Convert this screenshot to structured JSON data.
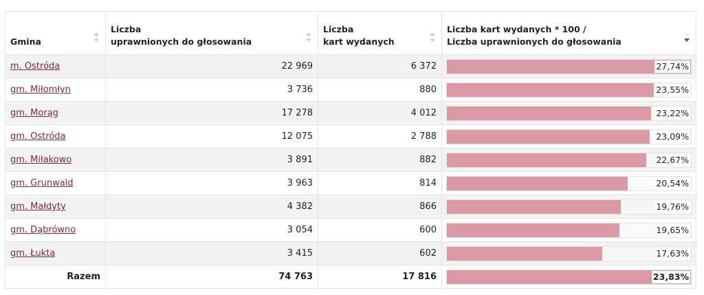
{
  "headers": {
    "gmina": "Gmina",
    "uprawnieni_l1": "Liczba",
    "uprawnieni_l2": "uprawnionych do głosowania",
    "karty_l1": "Liczba",
    "karty_l2": "kart wydanych",
    "frekwencja_l1": "Liczba kart wydanych * 100 /",
    "frekwencja_l2": "Liczba uprawnionych do głosowania"
  },
  "rows": [
    {
      "gmina": "m. Ostróda",
      "uprawnieni": "22 969",
      "karty": "6 372",
      "frekwencja": "27,74%",
      "bar_fraction": 1.0
    },
    {
      "gmina": "gm. Miłomłyn",
      "uprawnieni": "3 736",
      "karty": "880",
      "frekwencja": "23,55%",
      "bar_fraction": 0.849
    },
    {
      "gmina": "gm. Morąg",
      "uprawnieni": "17 278",
      "karty": "4 012",
      "frekwencja": "23,22%",
      "bar_fraction": 0.837
    },
    {
      "gmina": "gm. Ostróda",
      "uprawnieni": "12 075",
      "karty": "2 788",
      "frekwencja": "23,09%",
      "bar_fraction": 0.832
    },
    {
      "gmina": "gm. Miłakowo",
      "uprawnieni": "3 891",
      "karty": "882",
      "frekwencja": "22,67%",
      "bar_fraction": 0.817
    },
    {
      "gmina": "gm. Grunwald",
      "uprawnieni": "3 963",
      "karty": "814",
      "frekwencja": "20,54%",
      "bar_fraction": 0.74
    },
    {
      "gmina": "gm. Małdyty",
      "uprawnieni": "4 382",
      "karty": "866",
      "frekwencja": "19,76%",
      "bar_fraction": 0.712
    },
    {
      "gmina": "gm. Dąbrówno",
      "uprawnieni": "3 054",
      "karty": "600",
      "frekwencja": "19,65%",
      "bar_fraction": 0.708
    },
    {
      "gmina": "gm. Łukta",
      "uprawnieni": "3 415",
      "karty": "602",
      "frekwencja": "17,63%",
      "bar_fraction": 0.636
    }
  ],
  "total": {
    "label": "Razem",
    "uprawnieni": "74 763",
    "karty": "17 816",
    "frekwencja": "23,83%",
    "bar_fraction": 1.0
  },
  "colors": {
    "bar": "#d99aa5",
    "link": "#7b2a3a"
  },
  "sorted_column": "frekwencja",
  "sort_direction": "descending"
}
